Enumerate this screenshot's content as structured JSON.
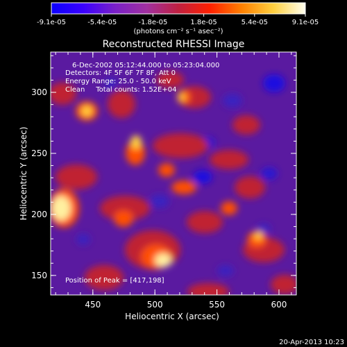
{
  "colorbar": {
    "colors": [
      "#0b00ff",
      "#3a00ff",
      "#7a20c8",
      "#a030a0",
      "#c02040",
      "#ff2000",
      "#ff8000",
      "#ffd040",
      "#fffff0"
    ],
    "tick_labels": [
      "-9.1e-05",
      "-5.4e-05",
      "-1.8e-05",
      "1.8e-05",
      "5.4e-05",
      "9.1e-05"
    ],
    "unit_label": "(photons cm⁻² s⁻¹ asec⁻²)"
  },
  "title": "Reconstructed RHESSI Image",
  "info_lines": [
    "6-Dec-2002 05:12:44.000 to 05:23:04.000",
    "Detectors: 4F 5F 6F 7F 8F, Att 0",
    "Energy Range: 25.0 - 50.0 keV",
    "Clean     Total counts: 1.52E+04"
  ],
  "peak_label": "Position of Peak = [417,198]",
  "x_axis": {
    "label": "Heliocentric X (arcsec)",
    "range": [
      416,
      614
    ],
    "ticks": [
      450,
      500,
      550,
      600
    ]
  },
  "y_axis": {
    "label": "Heliocentric Y (arcsec)",
    "range": [
      134,
      333
    ],
    "ticks": [
      150,
      200,
      250,
      300
    ]
  },
  "timestamp": "20-Apr-2013 10:23"
}
